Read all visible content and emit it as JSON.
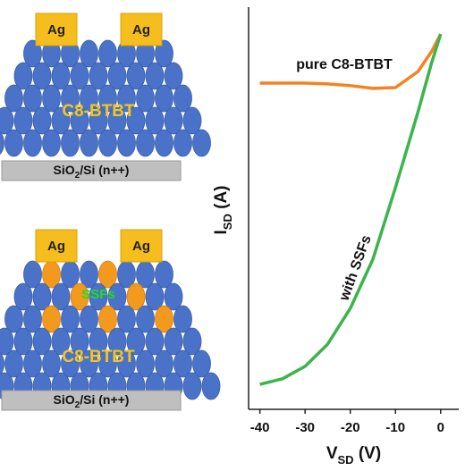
{
  "schematics": [
    {
      "electrodes": [
        "Ag",
        "Ag"
      ],
      "layer": "C8-BTBT",
      "substrate": [
        "SiO",
        "2",
        "/Si (n++)"
      ]
    },
    {
      "electrodes": [
        "Ag",
        "Ag"
      ],
      "layer": "C8-BTBT",
      "additive": "SSFs",
      "substrate": [
        "SiO",
        "2",
        "/Si (n++)"
      ]
    }
  ],
  "chart_data": {
    "type": "line",
    "xlabel": [
      "V",
      "SD",
      " (V)"
    ],
    "ylabel": [
      "I",
      "SD",
      " (A)"
    ],
    "x": [
      -40,
      -35,
      -30,
      -25,
      -20,
      -15,
      -10,
      -5,
      -2,
      0
    ],
    "xlim": [
      -42.5,
      4
    ],
    "xticks": [
      -40,
      -30,
      -20,
      -10,
      0
    ],
    "ylim": [
      0,
      1
    ],
    "series": [
      {
        "name": "pure C8-BTBT",
        "color": "#f58220",
        "values": [
          0.811,
          0.811,
          0.811,
          0.809,
          0.805,
          0.798,
          0.8,
          0.84,
          0.89,
          0.933
        ]
      },
      {
        "name": "with SSFs",
        "color": "#3cb44b",
        "values": [
          0.062,
          0.076,
          0.107,
          0.162,
          0.251,
          0.373,
          0.551,
          0.74,
          0.862,
          0.933
        ]
      }
    ]
  }
}
